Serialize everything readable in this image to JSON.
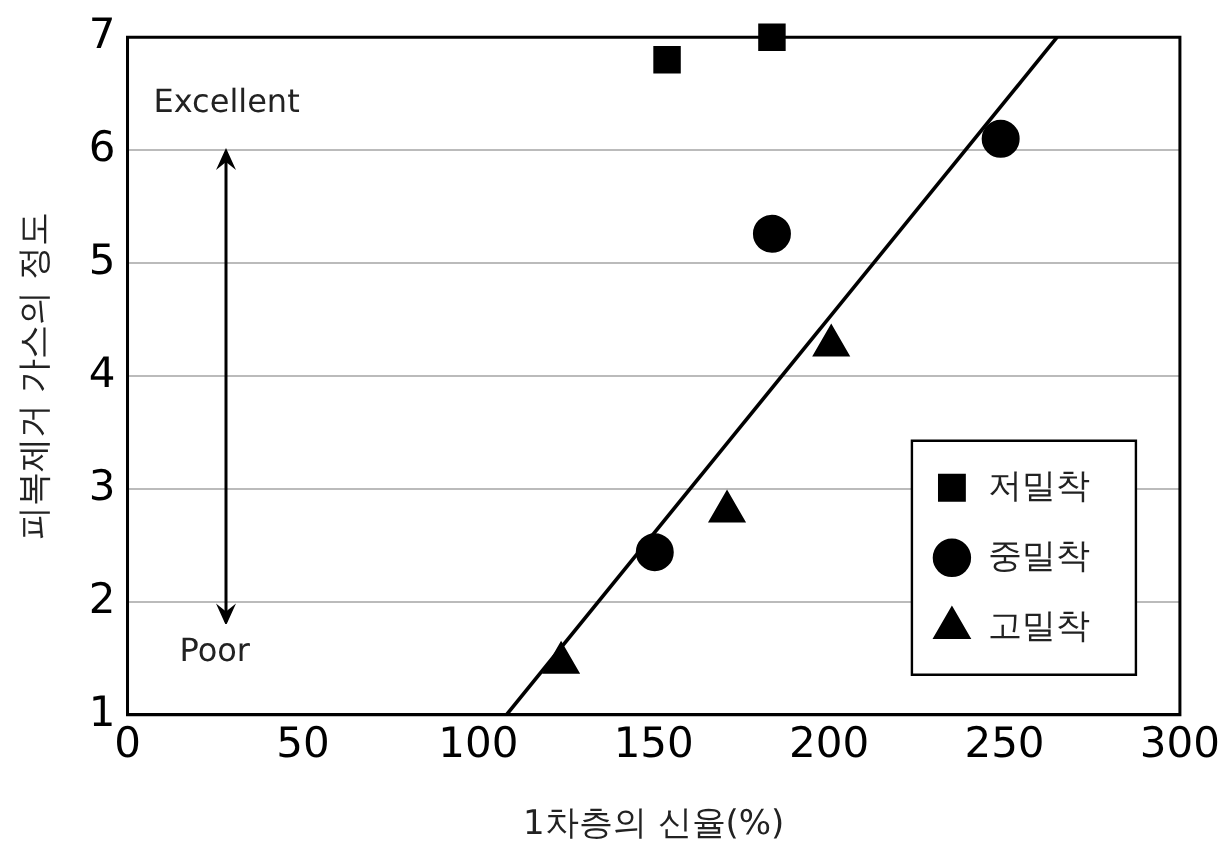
{
  "chart_data": {
    "type": "scatter",
    "xlabel": "1차층의 신율(%)",
    "ylabel": "피복제거 가스의 정도",
    "xlim": [
      0,
      300
    ],
    "xticks": [
      0,
      50,
      100,
      150,
      200,
      250,
      300
    ],
    "ylim": [
      1,
      7
    ],
    "yticks": [
      1,
      2,
      3,
      4,
      5,
      6,
      7
    ],
    "grid": "y",
    "legend": "bottom right",
    "annotations": [
      "Excellent",
      "Poor"
    ],
    "series": [
      {
        "name": "저밀착",
        "color": "#000000",
        "marker": "square",
        "x": [
          153.8,
          183.7
        ],
        "values": [
          6.8,
          7.0
        ]
      },
      {
        "name": "중밀착",
        "color": "#000000",
        "marker": "circle",
        "x": [
          150.3,
          183.7,
          248.9
        ],
        "values": [
          2.44,
          5.26,
          6.1
        ]
      },
      {
        "name": "고밀착",
        "color": "#000000",
        "marker": "triangle",
        "x": [
          123.6,
          170.9,
          200.6
        ],
        "values": [
          1.46,
          2.8,
          4.27
        ]
      },
      {
        "type": "line",
        "color": "#000000",
        "marker": "none",
        "x": [
          108,
          265
        ],
        "values": [
          1,
          7
        ]
      }
    ]
  }
}
